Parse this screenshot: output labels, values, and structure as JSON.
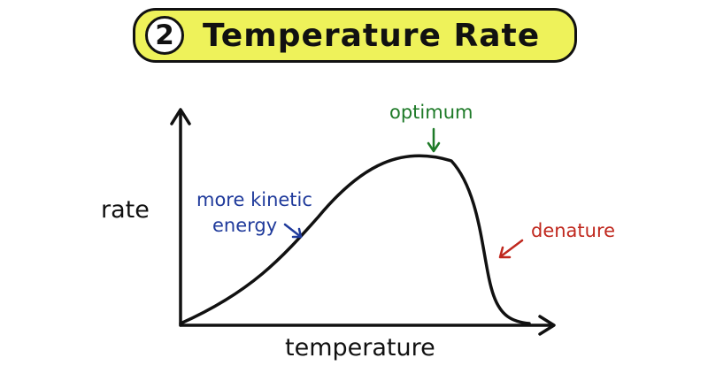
{
  "title": {
    "number": "2",
    "text": "Temperature Rate",
    "banner_color": "#eef25a"
  },
  "axes": {
    "y_label": "rate",
    "x_label": "temperature"
  },
  "annotations": {
    "kinetic_line1": "more kinetic",
    "kinetic_line2": "energy",
    "optimum": "optimum",
    "denature": "denature"
  },
  "colors": {
    "kinetic": "#1f3a9b",
    "optimum": "#1e7a28",
    "denature": "#c0281e",
    "ink": "#111111"
  }
}
